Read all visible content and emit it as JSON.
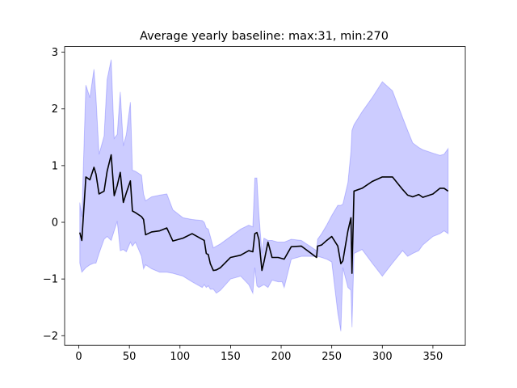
{
  "chart_data": {
    "type": "area",
    "title": "Average yearly baseline: max:31, min:270",
    "xlabel": "",
    "ylabel": "",
    "xlim": [
      -14,
      382
    ],
    "ylim": [
      -2.17,
      3.1
    ],
    "xticks": [
      0,
      50,
      100,
      150,
      200,
      250,
      300,
      350
    ],
    "yticks": [
      -2,
      -1,
      0,
      1,
      2,
      3
    ],
    "grid": false,
    "legend": "none",
    "colors": {
      "mean_line": "#000000",
      "band_fill": "#0000ff",
      "band_opacity": 0.2,
      "axes": "#000000",
      "background": "#ffffff"
    },
    "series": [
      {
        "type": "line",
        "x": [
          1,
          3,
          7,
          11,
          15,
          17,
          20,
          25,
          28,
          32,
          35,
          38,
          41,
          44,
          47,
          51,
          53,
          56,
          62,
          64,
          66,
          72,
          80,
          87,
          93,
          103,
          112,
          122,
          124,
          126,
          128,
          130,
          133,
          136,
          140,
          150,
          160,
          168,
          172,
          174,
          176,
          178,
          181,
          183,
          187,
          191,
          197,
          201,
          203,
          210,
          220,
          235,
          236,
          240,
          245,
          250,
          256,
          259,
          261,
          266,
          269,
          270,
          272,
          280,
          290,
          300,
          310,
          320,
          325,
          330,
          336,
          340,
          350,
          357,
          361,
          365
        ],
        "y": [
          -0.18,
          -0.32,
          0.8,
          0.75,
          0.97,
          0.85,
          0.5,
          0.55,
          0.9,
          1.19,
          0.47,
          0.65,
          0.88,
          0.35,
          0.52,
          0.73,
          0.2,
          0.17,
          0.1,
          0.05,
          -0.22,
          -0.17,
          -0.15,
          -0.1,
          -0.33,
          -0.28,
          -0.2,
          -0.3,
          -0.32,
          -0.55,
          -0.57,
          -0.73,
          -0.85,
          -0.84,
          -0.8,
          -0.62,
          -0.58,
          -0.5,
          -0.52,
          -0.2,
          -0.18,
          -0.3,
          -0.85,
          -0.7,
          -0.35,
          -0.62,
          -0.62,
          -0.64,
          -0.65,
          -0.43,
          -0.42,
          -0.62,
          -0.42,
          -0.4,
          -0.32,
          -0.25,
          -0.42,
          -0.73,
          -0.68,
          -0.15,
          0.08,
          -0.9,
          0.55,
          0.6,
          0.72,
          0.8,
          0.8,
          0.58,
          0.48,
          0.45,
          0.49,
          0.44,
          0.5,
          0.6,
          0.6,
          0.55
        ]
      },
      {
        "type": "band",
        "x": [
          1,
          3,
          7,
          11,
          15,
          17,
          20,
          25,
          28,
          32,
          35,
          38,
          41,
          44,
          47,
          51,
          53,
          56,
          62,
          64,
          66,
          72,
          80,
          87,
          93,
          103,
          112,
          122,
          124,
          126,
          128,
          130,
          133,
          136,
          140,
          150,
          160,
          168,
          172,
          174,
          176,
          178,
          181,
          183,
          187,
          191,
          197,
          201,
          203,
          210,
          220,
          235,
          236,
          240,
          245,
          250,
          256,
          259,
          261,
          266,
          269,
          270,
          272,
          280,
          290,
          300,
          310,
          320,
          325,
          330,
          336,
          340,
          350,
          357,
          361,
          365
        ],
        "y_low": [
          -0.72,
          -0.88,
          -0.8,
          -0.75,
          -0.72,
          -0.72,
          -0.55,
          -0.3,
          -0.25,
          -0.32,
          -0.15,
          0.02,
          -0.5,
          -0.48,
          -0.52,
          -0.35,
          -0.42,
          -0.35,
          -0.6,
          -0.82,
          -0.75,
          -0.82,
          -0.88,
          -0.88,
          -0.9,
          -0.95,
          -1.05,
          -1.15,
          -1.1,
          -1.15,
          -1.12,
          -1.18,
          -1.18,
          -1.25,
          -1.2,
          -1.0,
          -0.95,
          -1.1,
          -1.25,
          -0.8,
          -1.12,
          -1.15,
          -1.12,
          -1.1,
          -1.15,
          -1.02,
          -1.05,
          -1.05,
          -1.15,
          -0.65,
          -0.6,
          -0.6,
          -0.6,
          -0.62,
          -0.65,
          -0.7,
          -1.6,
          -1.92,
          -0.8,
          -1.15,
          -1.2,
          -1.85,
          -0.55,
          -0.48,
          -0.72,
          -0.95,
          -0.72,
          -0.5,
          -0.6,
          -0.55,
          -0.5,
          -0.4,
          -0.25,
          -0.2,
          -0.15,
          -0.2
        ],
        "y_high": [
          0.35,
          0.1,
          2.42,
          2.2,
          2.7,
          2.2,
          1.2,
          1.52,
          2.52,
          2.87,
          1.48,
          1.55,
          2.3,
          1.35,
          1.55,
          2.12,
          0.92,
          0.9,
          0.83,
          0.5,
          0.38,
          0.45,
          0.48,
          0.5,
          0.22,
          0.08,
          0.05,
          0.03,
          0.0,
          -0.1,
          -0.12,
          -0.25,
          -0.45,
          -0.42,
          -0.38,
          -0.25,
          -0.12,
          -0.05,
          -0.08,
          0.78,
          0.78,
          0.15,
          -0.55,
          -0.28,
          -0.32,
          -0.32,
          -0.35,
          -0.35,
          -0.35,
          -0.3,
          -0.32,
          -0.5,
          -0.3,
          -0.2,
          -0.05,
          0.12,
          0.3,
          0.3,
          0.32,
          0.7,
          1.25,
          1.62,
          1.72,
          1.95,
          2.2,
          2.48,
          2.32,
          1.85,
          1.62,
          1.4,
          1.32,
          1.28,
          1.22,
          1.18,
          1.2,
          1.3
        ]
      }
    ]
  }
}
